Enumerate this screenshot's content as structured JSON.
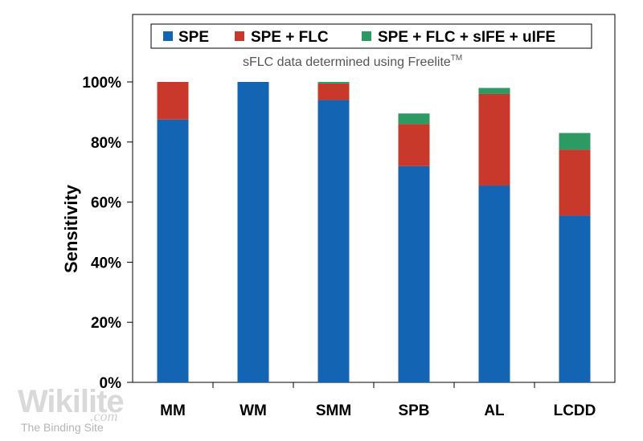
{
  "chart_data": {
    "type": "bar",
    "stacked": true,
    "subtitle_text": "sFLC data determined using Freelite",
    "subtitle_sup": "TM",
    "ylabel": "Sensitivity",
    "xlabel": "",
    "ylim": [
      0,
      100
    ],
    "yticks": [
      "0%",
      "20%",
      "40%",
      "60%",
      "80%",
      "100%"
    ],
    "ytick_values": [
      0,
      20,
      40,
      60,
      80,
      100
    ],
    "grid": false,
    "legend_position": "top",
    "categories": [
      "MM",
      "WM",
      "SMM",
      "SPB",
      "AL",
      "LCDD"
    ],
    "series": [
      {
        "name": "SPE",
        "color": "#1464b4",
        "values": [
          87.5,
          100,
          94,
          72,
          65.5,
          55.5
        ]
      },
      {
        "name": "SPE + FLC",
        "color": "#c8392b",
        "values": [
          12.5,
          0,
          5.5,
          14,
          30.5,
          22
        ]
      },
      {
        "name": "SPE + FLC + sIFE + uIFE",
        "color": "#2e9a63",
        "values": [
          0,
          0,
          0.5,
          3.5,
          2,
          5.5
        ]
      }
    ]
  },
  "watermark": {
    "main": "Wikilite",
    "suffix": ".com",
    "sub": "The Binding Site"
  }
}
